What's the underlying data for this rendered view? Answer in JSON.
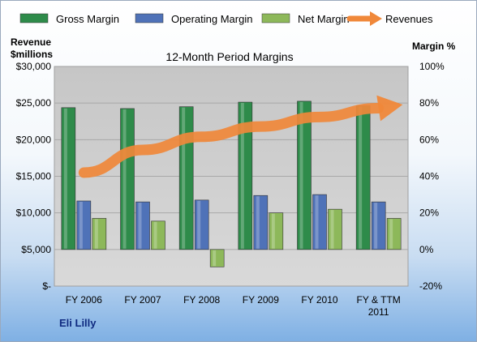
{
  "chart_data": {
    "type": "bar",
    "title": "12-Month Period Margins",
    "categories": [
      "FY 2006",
      "FY 2007",
      "FY 2008",
      "FY 2009",
      "FY 2010",
      "FY & TTM 2011"
    ],
    "category_lines": [
      [
        "FY 2006"
      ],
      [
        "FY 2007"
      ],
      [
        "FY 2008"
      ],
      [
        "FY 2009"
      ],
      [
        "FY 2010"
      ],
      [
        "FY & TTM",
        "2011"
      ]
    ],
    "series": [
      {
        "name": "Gross Margin",
        "axis": "right",
        "unit": "%",
        "values": [
          77.5,
          77.0,
          78.0,
          80.5,
          81.0,
          78.5
        ],
        "color": "#2e8b4a"
      },
      {
        "name": "Operating Margin",
        "axis": "right",
        "unit": "%",
        "values": [
          26.5,
          26.0,
          27.0,
          29.5,
          30.0,
          26.0
        ],
        "color": "#4f72b8"
      },
      {
        "name": "Net Margin",
        "axis": "right",
        "unit": "%",
        "values": [
          17.0,
          15.5,
          -9.5,
          20.0,
          22.0,
          17.0
        ],
        "color": "#8db85a"
      }
    ],
    "line_series": {
      "name": "Revenues",
      "axis": "left",
      "unit": "$millions",
      "values": [
        15500,
        18600,
        20400,
        21800,
        23100,
        24300
      ],
      "color": "#f0883a"
    },
    "ylabel_left_lines": [
      "Revenue",
      "$millions"
    ],
    "ylabel_right": "Margin %",
    "ylim_left": [
      0,
      30000
    ],
    "yticks_left": [
      "$-",
      "$5,000",
      "$10,000",
      "$15,000",
      "$20,000",
      "$25,000",
      "$30,000"
    ],
    "ylim_right": [
      -20,
      100
    ],
    "yticks_right": [
      "-20%",
      "0%",
      "20%",
      "40%",
      "60%",
      "80%",
      "100%"
    ],
    "grid": true,
    "legend": "top",
    "legend_entries": [
      "Gross Margin",
      "Operating Margin",
      "Net Margin",
      "Revenues"
    ]
  },
  "company_label": "Eli Lilly"
}
